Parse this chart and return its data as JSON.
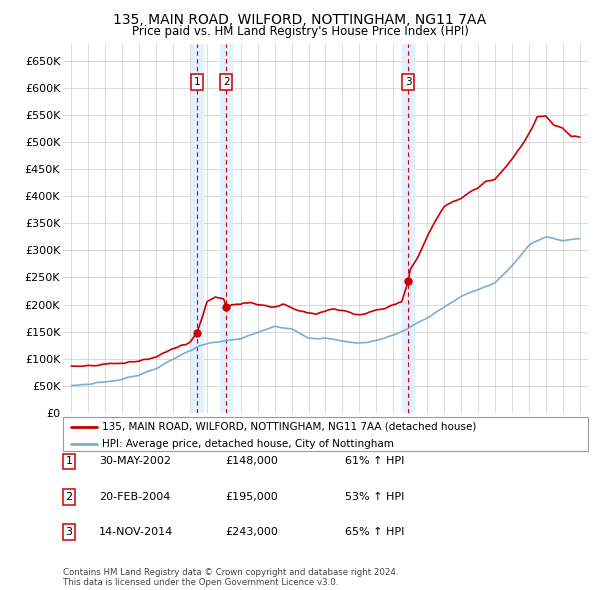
{
  "title": "135, MAIN ROAD, WILFORD, NOTTINGHAM, NG11 7AA",
  "subtitle": "Price paid vs. HM Land Registry's House Price Index (HPI)",
  "footer": "Contains HM Land Registry data © Crown copyright and database right 2024.\nThis data is licensed under the Open Government Licence v3.0.",
  "legend_line1": "135, MAIN ROAD, WILFORD, NOTTINGHAM, NG11 7AA (detached house)",
  "legend_line2": "HPI: Average price, detached house, City of Nottingham",
  "sales": [
    {
      "label": "1",
      "date_num": 2002.42,
      "price": 148000,
      "pct": "61%",
      "dir": "↑",
      "date_str": "30-MAY-2002"
    },
    {
      "label": "2",
      "date_num": 2004.13,
      "price": 195000,
      "pct": "53%",
      "dir": "↑",
      "date_str": "20-FEB-2004"
    },
    {
      "label": "3",
      "date_num": 2014.88,
      "price": 243000,
      "pct": "65%",
      "dir": "↑",
      "date_str": "14-NOV-2014"
    }
  ],
  "hpi_color": "#7bafd4",
  "price_color": "#cc0000",
  "sale_box_color": "#cc0000",
  "vline_color": "#cc0000",
  "shade_color": "#ddeeff",
  "background_color": "#ffffff",
  "grid_color": "#cccccc",
  "ylim": [
    0,
    680000
  ],
  "yticks": [
    0,
    50000,
    100000,
    150000,
    200000,
    250000,
    300000,
    350000,
    400000,
    450000,
    500000,
    550000,
    600000,
    650000
  ],
  "xlim": [
    1994.5,
    2025.5
  ],
  "xticks": [
    1995,
    1996,
    1997,
    1998,
    1999,
    2000,
    2001,
    2002,
    2003,
    2004,
    2005,
    2006,
    2007,
    2008,
    2009,
    2010,
    2011,
    2012,
    2013,
    2014,
    2015,
    2016,
    2017,
    2018,
    2019,
    2020,
    2021,
    2022,
    2023,
    2024,
    2025
  ]
}
